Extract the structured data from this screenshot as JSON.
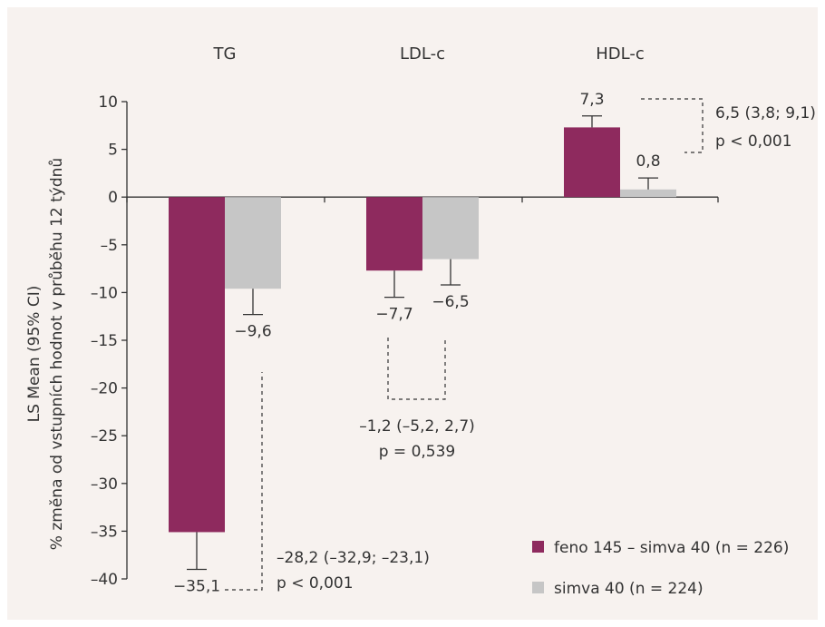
{
  "chart_data": {
    "type": "bar",
    "categories": [
      "TG",
      "LDL-c",
      "HDL-c"
    ],
    "series": [
      {
        "name": "feno 145 – simva 40 (n = 226)",
        "color": "#8e2a5e",
        "values": [
          -35.1,
          -7.7,
          7.3
        ],
        "ci_upper": [
          -39.0,
          -10.5,
          8.5
        ]
      },
      {
        "name": "simva 40 (n = 224)",
        "color": "#c6c6c6",
        "values": [
          -9.6,
          -6.5,
          0.8
        ],
        "ci_upper": [
          -12.3,
          -9.2,
          2.0
        ]
      }
    ],
    "value_labels": [
      [
        "−35,1",
        "−7,7",
        "7,3"
      ],
      [
        "−9,6",
        "−6,5",
        "0,8"
      ]
    ],
    "ylabel_line1": "LS Mean (95% CI)",
    "ylabel_line2": "% změna od vstupních hodnot v průběhu 12 týdnů",
    "ylim": [
      -40,
      10
    ],
    "yticks": [
      10,
      5,
      0,
      -5,
      -10,
      -15,
      -20,
      -25,
      -30,
      -35,
      -40
    ],
    "ytick_labels": [
      "10",
      "5",
      "0",
      "–5",
      "–10",
      "–15",
      "–20",
      "–25",
      "–30",
      "–35",
      "–40"
    ],
    "annotations": [
      {
        "category": "TG",
        "line1": "–28,2 (–32,9; –23,1)",
        "line2": "p < 0,001"
      },
      {
        "category": "LDL-c",
        "line1": "–1,2 (–5,2, 2,7)",
        "line2": "p = 0,539"
      },
      {
        "category": "HDL-c",
        "line1": "6,5 (3,8; 9,1)",
        "line2": "p < 0,001"
      }
    ],
    "legend_position": "bottom-right",
    "grid": false
  }
}
